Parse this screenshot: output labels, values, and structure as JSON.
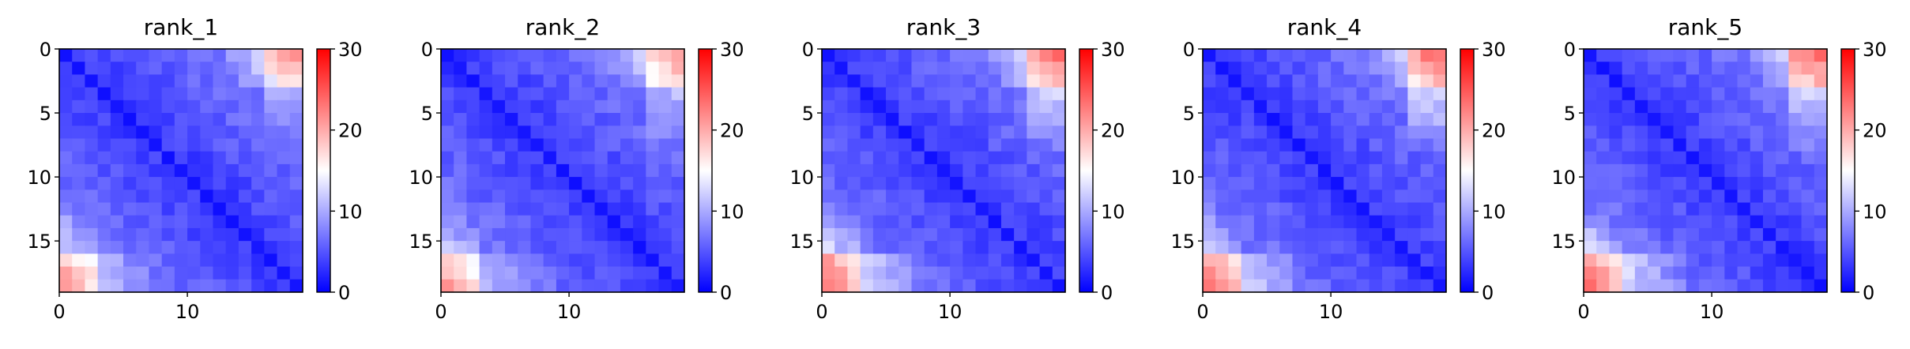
{
  "chart_data": [
    {
      "type": "heatmap",
      "title": "rank_1",
      "rows": 19,
      "cols": 19,
      "variant": 1,
      "xticks": [
        "0",
        "10"
      ],
      "yticks": [
        "0",
        "5",
        "10",
        "15"
      ],
      "colorbar": {
        "ticks": [
          "0",
          "10",
          "20",
          "30"
        ],
        "range": [
          0,
          30
        ],
        "colormap": "bwr"
      }
    },
    {
      "type": "heatmap",
      "title": "rank_2",
      "rows": 19,
      "cols": 19,
      "variant": 2,
      "xticks": [
        "0",
        "10"
      ],
      "yticks": [
        "0",
        "5",
        "10",
        "15"
      ],
      "colorbar": {
        "ticks": [
          "0",
          "10",
          "20",
          "30"
        ],
        "range": [
          0,
          30
        ],
        "colormap": "bwr"
      }
    },
    {
      "type": "heatmap",
      "title": "rank_3",
      "rows": 19,
      "cols": 19,
      "variant": 3,
      "xticks": [
        "0",
        "10"
      ],
      "yticks": [
        "0",
        "5",
        "10",
        "15"
      ],
      "colorbar": {
        "ticks": [
          "0",
          "10",
          "20",
          "30"
        ],
        "range": [
          0,
          30
        ],
        "colormap": "bwr"
      }
    },
    {
      "type": "heatmap",
      "title": "rank_4",
      "rows": 19,
      "cols": 19,
      "variant": 4,
      "xticks": [
        "0",
        "10"
      ],
      "yticks": [
        "0",
        "5",
        "10",
        "15"
      ],
      "colorbar": {
        "ticks": [
          "0",
          "10",
          "20",
          "30"
        ],
        "range": [
          0,
          30
        ],
        "colormap": "bwr"
      }
    },
    {
      "type": "heatmap",
      "title": "rank_5",
      "rows": 19,
      "cols": 19,
      "variant": 5,
      "xticks": [
        "0",
        "10"
      ],
      "yticks": [
        "0",
        "5",
        "10",
        "15"
      ],
      "colorbar": {
        "ticks": [
          "0",
          "10",
          "20",
          "30"
        ],
        "range": [
          0,
          30
        ],
        "colormap": "bwr"
      }
    }
  ],
  "colors": {
    "low": "#0000ff",
    "mid": "#ffffff",
    "high": "#ff0000"
  }
}
